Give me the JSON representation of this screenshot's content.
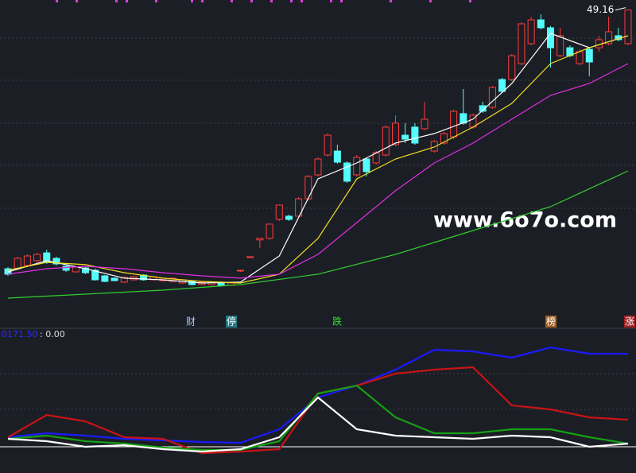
{
  "chart_data": [
    {
      "type": "candlestick",
      "xlim": [
        0,
        64
      ],
      "ylim": [
        17,
        50.22
      ],
      "up_color": "#ff3b3b",
      "down_color": "#54fcfc",
      "open": [
        21.79,
        21.79,
        22.13,
        22.64,
        23.47,
        22.89,
        22.05,
        21.46,
        21.88,
        21.63,
        21.04,
        20.79,
        20.37,
        20.62,
        21.12,
        20.62,
        20.53,
        20.45,
        20.28,
        20.45,
        20.11,
        20.11,
        20.37,
        20.03,
        21.55,
        22.98,
        24.84,
        25.01,
        27.01,
        27.35,
        27.35,
        29.19,
        31.72,
        33.82,
        34.24,
        32.98,
        31.72,
        33.4,
        32.98,
        33.82,
        34.91,
        35.92,
        36.77,
        36.6,
        34.24,
        35.08,
        35.75,
        38.2,
        36.77,
        39.04,
        38.87,
        41.81,
        41.81,
        43.49,
        45.6,
        48.12,
        47.28,
        44.33,
        45.17,
        43.49,
        45.01,
        45.17,
        45.6,
        46.44,
        45.6
      ],
      "high": [
        21.96,
        23.06,
        23.31,
        23.47,
        23.81,
        23.06,
        22.13,
        22.05,
        21.96,
        21.79,
        21.12,
        20.87,
        20.95,
        21.04,
        21.21,
        21.04,
        20.87,
        20.87,
        20.7,
        20.53,
        20.45,
        20.45,
        20.45,
        20.37,
        21.63,
        23.06,
        25.01,
        26.51,
        28.6,
        27.51,
        29.36,
        31.72,
        33.57,
        36.09,
        34.91,
        33.15,
        33.82,
        33.57,
        34.24,
        36.93,
        38.03,
        37.19,
        37.19,
        39.46,
        35.42,
        36.26,
        38.62,
        40.8,
        38.2,
        39.46,
        41.14,
        41.98,
        44.5,
        47.87,
        48.45,
        48.71,
        47.45,
        47.28,
        45.43,
        45.01,
        45.17,
        46.44,
        48.45,
        47.28,
        49.16
      ],
      "low": [
        21.05,
        21.63,
        21.96,
        22.47,
        22.3,
        22.13,
        21.46,
        21.37,
        21.21,
        20.53,
        20.37,
        20.45,
        20.28,
        20.53,
        20.53,
        20.53,
        20.45,
        20.37,
        20.2,
        20.03,
        20.03,
        20.03,
        19.95,
        19.95,
        21.46,
        22.98,
        23.98,
        24.84,
        26.84,
        26.84,
        27.18,
        29.02,
        31.55,
        33.65,
        32.9,
        30.88,
        31.55,
        31.55,
        32.81,
        33.65,
        34.74,
        35.08,
        34.91,
        36.43,
        34.07,
        34.91,
        35.5,
        37.02,
        36.6,
        38.28,
        38.7,
        40.38,
        41.64,
        43.32,
        45.43,
        47.11,
        43.07,
        44.16,
        44.16,
        43.32,
        42.15,
        44.75,
        45.43,
        45.85,
        45.43
      ],
      "close": [
        21.21,
        22.89,
        23.14,
        23.31,
        22.47,
        22.3,
        21.63,
        21.96,
        21.37,
        20.62,
        20.45,
        20.53,
        20.87,
        20.95,
        20.62,
        20.95,
        20.79,
        20.79,
        20.62,
        20.11,
        20.37,
        20.37,
        20.03,
        20.28,
        21.63,
        23.06,
        25.01,
        26.51,
        28.52,
        27.01,
        29.19,
        31.55,
        33.4,
        35.92,
        33.06,
        31.05,
        33.57,
        32.06,
        34.07,
        36.77,
        37.19,
        35.5,
        35.08,
        37.61,
        35.25,
        36.09,
        38.45,
        37.19,
        38.03,
        38.45,
        40.97,
        40.55,
        44.33,
        47.7,
        48.12,
        47.28,
        45.17,
        46.44,
        44.33,
        44.75,
        43.66,
        46.02,
        46.86,
        46.02,
        49.16
      ],
      "lines": [
        {
          "color": "#ffffff",
          "x": [
            0,
            4,
            8,
            12,
            16,
            20,
            24,
            28,
            32,
            36,
            40,
            44,
            48,
            52,
            56,
            60,
            64
          ],
          "values": [
            21.46,
            22.64,
            21.79,
            20.79,
            20.62,
            20.28,
            20.37,
            23.14,
            31.3,
            32.98,
            35.08,
            36.09,
            37.61,
            41.39,
            46.69,
            45.17,
            46.44
          ]
        },
        {
          "color": "#f0e020",
          "x": [
            0,
            4,
            8,
            12,
            16,
            20,
            24,
            28,
            32,
            36,
            40,
            44,
            48,
            52,
            56,
            60,
            64
          ],
          "values": [
            21.63,
            22.47,
            22.22,
            21.37,
            20.79,
            20.45,
            20.28,
            21.21,
            25.01,
            31.3,
            33.4,
            34.66,
            36.77,
            39.29,
            43.49,
            45.17,
            46.44
          ]
        },
        {
          "color": "#e030e0",
          "x": [
            0,
            4,
            8,
            12,
            16,
            20,
            24,
            28,
            32,
            36,
            40,
            44,
            48,
            52,
            56,
            60,
            64
          ],
          "values": [
            21.21,
            21.79,
            22.05,
            21.79,
            21.37,
            21.04,
            20.79,
            21.21,
            23.31,
            26.67,
            30.04,
            32.98,
            35.08,
            37.61,
            40.13,
            41.39,
            43.49
          ]
        },
        {
          "color": "#30d030",
          "x": [
            0,
            8,
            16,
            24,
            32,
            40,
            48,
            56,
            64
          ],
          "values": [
            18.68,
            19.1,
            19.52,
            20.11,
            21.21,
            23.31,
            25.83,
            28.35,
            32.14
          ]
        }
      ]
    },
    {
      "type": "line",
      "xlim": [
        0,
        64
      ],
      "ylim": [
        -26.4,
        117.6
      ],
      "baseline": 0,
      "legend": [
        "0171.50",
        ": 0.00"
      ],
      "x": [
        0,
        4,
        8,
        12,
        16,
        20,
        24,
        28,
        32,
        36,
        40,
        44,
        48,
        52,
        56,
        60,
        64
      ],
      "series": [
        {
          "color": "#1a1aff",
          "values": [
            9.6,
            13.6,
            11.2,
            8,
            6.4,
            4.8,
            4,
            17.6,
            49.6,
            61.6,
            77.6,
            97.6,
            96,
            89.6,
            100,
            93.6,
            93.6
          ]
        },
        {
          "color": "#c81414",
          "values": [
            9.6,
            32,
            25.6,
            9.6,
            8,
            -6.4,
            -4.8,
            -2.4,
            53.6,
            61.6,
            73.6,
            77.6,
            80,
            41.6,
            37.6,
            29.6,
            27.2
          ]
        },
        {
          "color": "#14a014",
          "values": [
            8,
            11.2,
            5.6,
            3.2,
            -0.8,
            -3.2,
            -3.2,
            5.6,
            53.6,
            61.6,
            29.6,
            13.6,
            13.6,
            17.6,
            17.6,
            9.6,
            3.2
          ]
        },
        {
          "color": "#ffffff",
          "values": [
            8,
            5.6,
            0,
            1.6,
            -2.4,
            -4.8,
            -2.4,
            9.6,
            49.6,
            17.6,
            11.2,
            9.6,
            8,
            11.2,
            9.6,
            0,
            3.2
          ]
        }
      ]
    }
  ],
  "watermark": "www.6o7o.com",
  "markers": [
    "财",
    "停",
    "跌",
    "榜",
    "涨"
  ]
}
